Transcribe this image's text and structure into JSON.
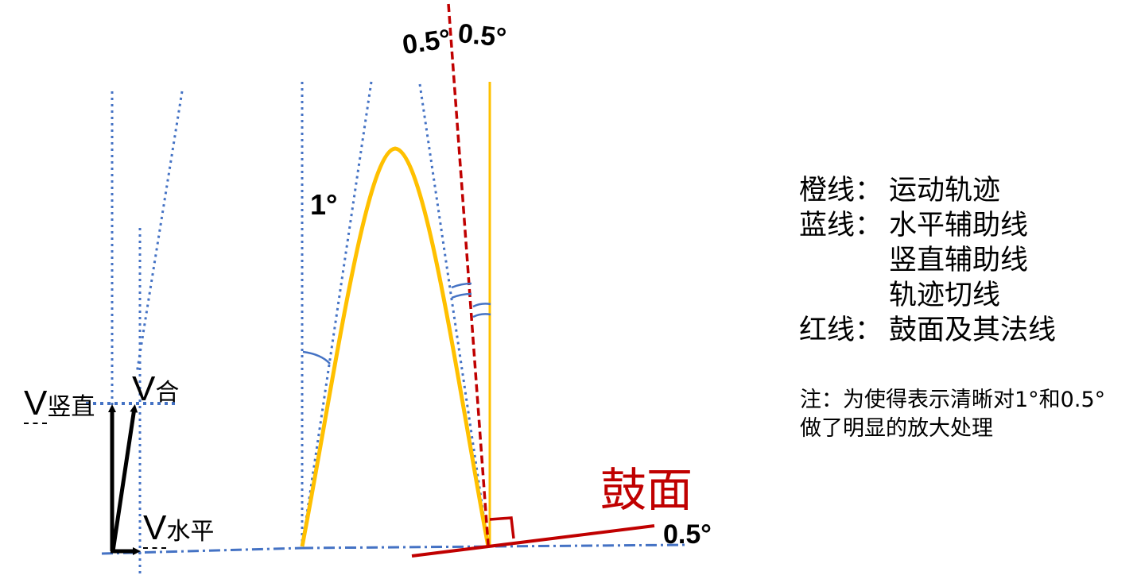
{
  "labels": {
    "v_letter": "V",
    "v_vertical_sub": "竖直",
    "v_resultant_sub": "合",
    "v_horizontal_sub": "水平",
    "angle_1": "1°",
    "angle_half_left": "0.5°",
    "angle_half_right": "0.5°",
    "angle_half_bottom": "0.5°",
    "drum_surface": "鼓面"
  },
  "legend": {
    "orange_key": "橙线：",
    "orange_value": "运动轨迹",
    "blue_key": "蓝线：",
    "blue_value_1": "水平辅助线",
    "blue_value_2": "竖直辅助线",
    "blue_value_3": "轨迹切线",
    "red_key": "红线：",
    "red_value": "鼓面及其法线"
  },
  "note": {
    "line1": "注：为使得表示清晰对1°和0.5°",
    "line2": "做了明显的放大处理"
  },
  "colors": {
    "orange": "#ffc000",
    "blue": "#4472c4",
    "red": "#c00000",
    "black": "#000000"
  }
}
